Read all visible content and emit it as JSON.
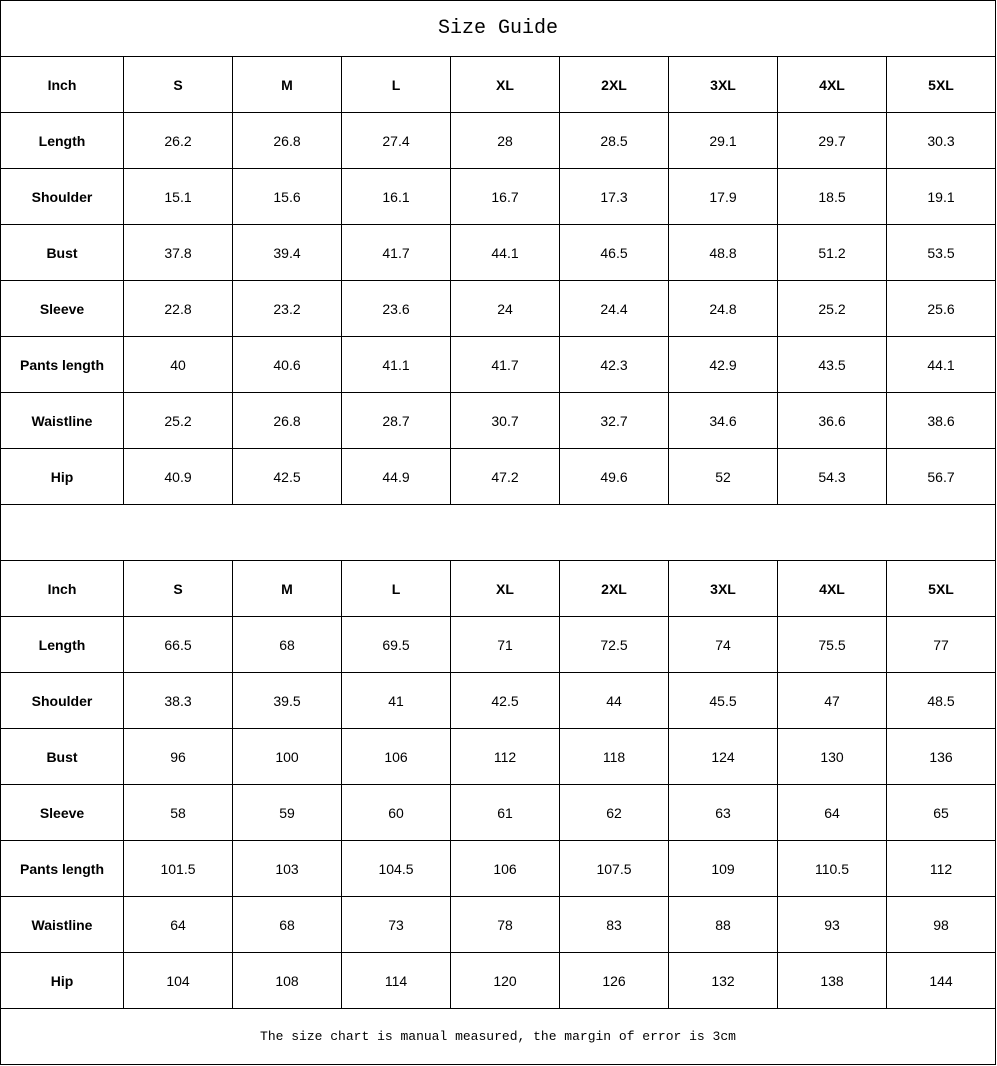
{
  "title": "Size Guide",
  "note": "The size chart is manual measured, the margin of error is 3cm",
  "tables": [
    {
      "header": [
        "Inch",
        "S",
        "M",
        "L",
        "XL",
        "2XL",
        "3XL",
        "4XL",
        "5XL"
      ],
      "rows": [
        [
          "Length",
          "26.2",
          "26.8",
          "27.4",
          "28",
          "28.5",
          "29.1",
          "29.7",
          "30.3"
        ],
        [
          "Shoulder",
          "15.1",
          "15.6",
          "16.1",
          "16.7",
          "17.3",
          "17.9",
          "18.5",
          "19.1"
        ],
        [
          "Bust",
          "37.8",
          "39.4",
          "41.7",
          "44.1",
          "46.5",
          "48.8",
          "51.2",
          "53.5"
        ],
        [
          "Sleeve",
          "22.8",
          "23.2",
          "23.6",
          "24",
          "24.4",
          "24.8",
          "25.2",
          "25.6"
        ],
        [
          "Pants length",
          "40",
          "40.6",
          "41.1",
          "41.7",
          "42.3",
          "42.9",
          "43.5",
          "44.1"
        ],
        [
          "Waistline",
          "25.2",
          "26.8",
          "28.7",
          "30.7",
          "32.7",
          "34.6",
          "36.6",
          "38.6"
        ],
        [
          "Hip",
          "40.9",
          "42.5",
          "44.9",
          "47.2",
          "49.6",
          "52",
          "54.3",
          "56.7"
        ]
      ]
    },
    {
      "header": [
        "Inch",
        "S",
        "M",
        "L",
        "XL",
        "2XL",
        "3XL",
        "4XL",
        "5XL"
      ],
      "rows": [
        [
          "Length",
          "66.5",
          "68",
          "69.5",
          "71",
          "72.5",
          "74",
          "75.5",
          "77"
        ],
        [
          "Shoulder",
          "38.3",
          "39.5",
          "41",
          "42.5",
          "44",
          "45.5",
          "47",
          "48.5"
        ],
        [
          "Bust",
          "96",
          "100",
          "106",
          "112",
          "118",
          "124",
          "130",
          "136"
        ],
        [
          "Sleeve",
          "58",
          "59",
          "60",
          "61",
          "62",
          "63",
          "64",
          "65"
        ],
        [
          "Pants length",
          "101.5",
          "103",
          "104.5",
          "106",
          "107.5",
          "109",
          "110.5",
          "112"
        ],
        [
          "Waistline",
          "64",
          "68",
          "73",
          "78",
          "83",
          "88",
          "93",
          "98"
        ],
        [
          "Hip",
          "104",
          "108",
          "114",
          "120",
          "126",
          "132",
          "138",
          "144"
        ]
      ]
    }
  ]
}
